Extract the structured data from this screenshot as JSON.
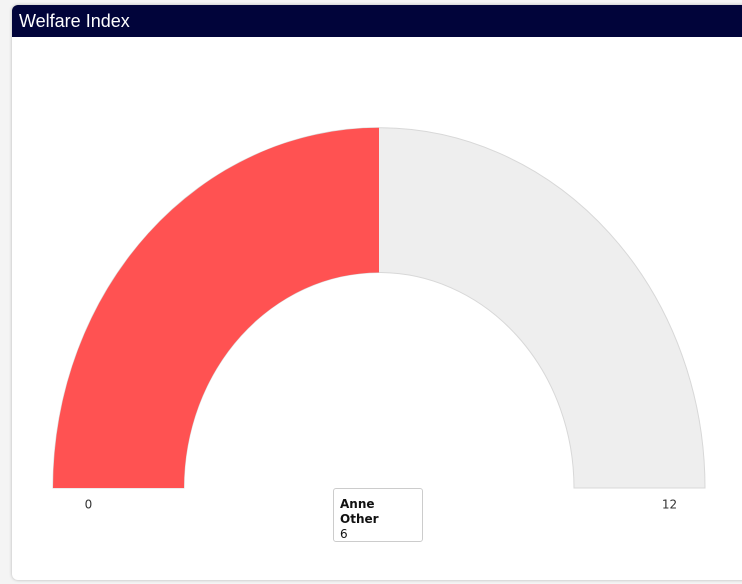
{
  "chart_data": {
    "type": "gauge",
    "title": "Welfare Index",
    "series": [
      {
        "name": "Anne Other",
        "values": [
          6
        ],
        "color": "#ff5252"
      }
    ],
    "track_color": "#eeeeee",
    "ylim": [
      0,
      12
    ],
    "yticks": [
      0,
      12
    ]
  }
}
